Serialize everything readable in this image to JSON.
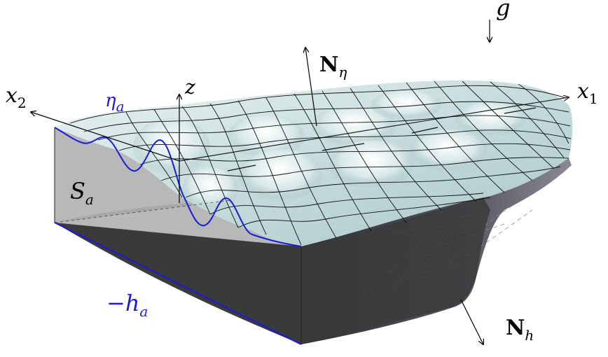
{
  "labels": {
    "gravity": {
      "main": "g"
    },
    "x2": {
      "main": "x",
      "sub": "2"
    },
    "x1": {
      "main": "x",
      "sub": "1"
    },
    "z": {
      "main": "z"
    },
    "eta_a": {
      "main": "η",
      "sub": "a"
    },
    "N_eta": {
      "main": "N",
      "sub": "η"
    },
    "S_a": {
      "main": "S",
      "sub": "a"
    },
    "minus_h_a": {
      "main": "−h",
      "sub": "a"
    },
    "N_h": {
      "main": "N",
      "sub": "h"
    }
  },
  "colors": {
    "surface": "#c9dede",
    "surface_light": "#e6f0f0",
    "side_wall": "#b4b4b4",
    "front_wall": "#333333",
    "bottom": "#3c3c3c",
    "seabed": "#5b5b66",
    "accent_blue": "#1b1bdc",
    "mesh": "#111111"
  }
}
